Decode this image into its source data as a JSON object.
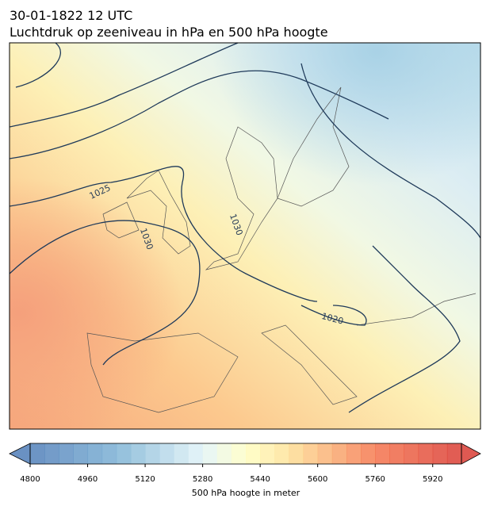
{
  "title_lines": [
    "30-01-1822 12 UTC",
    "Luchtdruk op zeeniveau in hPa en 500 hPa hoogte"
  ],
  "contour_labels": [
    "1025",
    "1030",
    "1030",
    "1020"
  ],
  "colorbar": {
    "label": "500 hPa hoogte in meter",
    "lim": [
      4800,
      6000
    ],
    "ticks": [
      4800,
      4960,
      5120,
      5280,
      5440,
      5600,
      5760,
      5920
    ]
  }
}
